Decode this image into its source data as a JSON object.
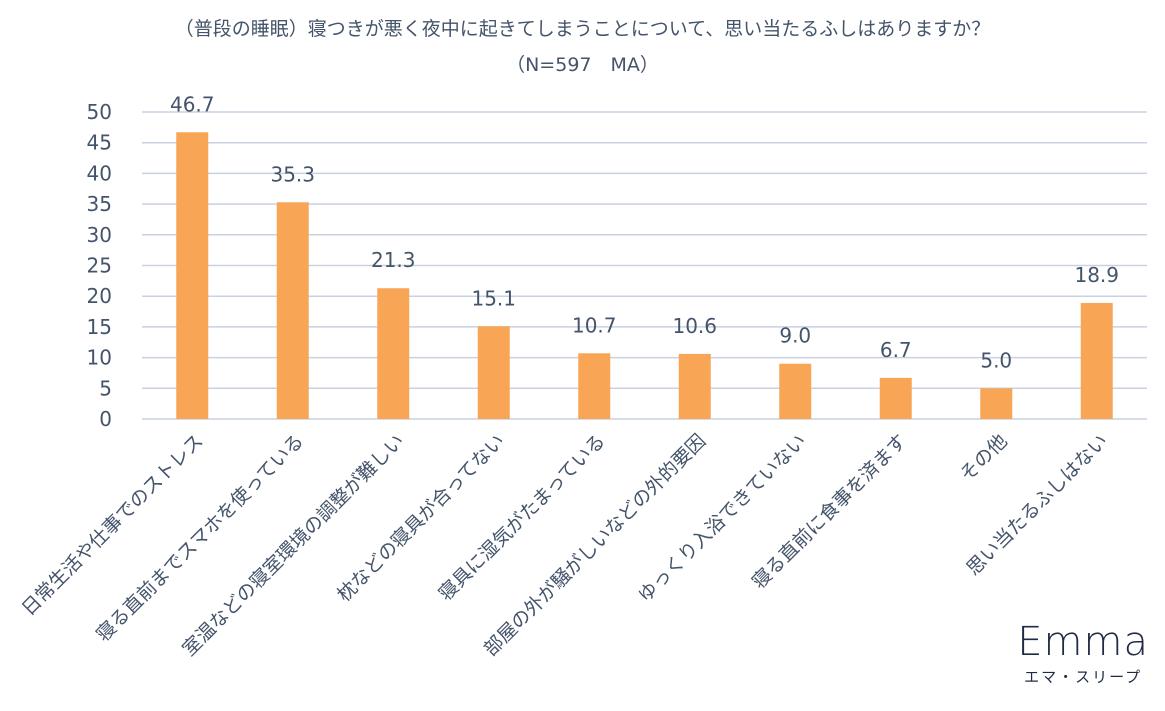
{
  "chart_data": {
    "type": "bar",
    "title": "（普段の睡眠）寝つきが悪く夜中に起きてしまうことについて、思い当たるふしはありますか？",
    "subtitle": "（N=597　MA）",
    "categories": [
      "日常生活や仕事でのストレス",
      "寝る直前までスマホを使っている",
      "室温などの寝室環境の調整が難しい",
      "枕などの寝具が合ってない",
      "寝具に湿気がたまっている",
      "部屋の外が騒がしいなどの外的要因",
      "ゆっくり入浴できていない",
      "寝る直前に食事を済ます",
      "その他",
      "思い当たるふしはない"
    ],
    "values": [
      46.7,
      35.3,
      21.3,
      15.1,
      10.7,
      10.6,
      9.0,
      6.7,
      5.0,
      18.9
    ],
    "value_labels": [
      "46.7",
      "35.3",
      "21.3",
      "15.1",
      "10.7",
      "10.6",
      "9.0",
      "6.7",
      "5.0",
      "18.9"
    ],
    "y_ticks": [
      "0",
      "5",
      "10",
      "15",
      "20",
      "25",
      "30",
      "35",
      "40",
      "45",
      "50"
    ],
    "ylim": [
      0,
      50
    ],
    "grid": true,
    "bar_color": "#f9a556",
    "grid_color": "#c9d1e3",
    "text_color": "#44546a"
  },
  "logo": {
    "name": "Emma",
    "subtitle": "エマ・スリープ"
  }
}
